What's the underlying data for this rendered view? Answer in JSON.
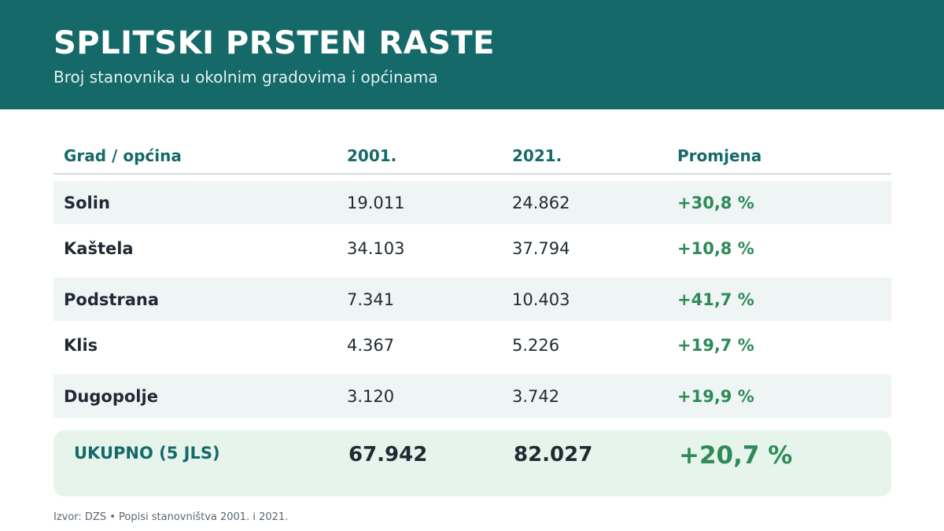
{
  "header": {
    "title": "SPLITSKI PRSTEN RASTE",
    "subtitle": "Broj stanovnika u okolnim gradovima i općinama"
  },
  "chart_data": {
    "type": "table",
    "title": "SPLITSKI PRSTEN RASTE",
    "subtitle": "Broj stanovnika u okolnim gradovima i općinama",
    "columns": [
      "Grad / općina",
      "2001.",
      "2021.",
      "Promjena"
    ],
    "rows": [
      {
        "name": "Solin",
        "y2001": "19.011",
        "y2021": "24.862",
        "change": "+30,8 %"
      },
      {
        "name": "Kaštela",
        "y2001": "34.103",
        "y2021": "37.794",
        "change": "+10,8 %"
      },
      {
        "name": "Podstrana",
        "y2001": "7.341",
        "y2021": "10.403",
        "change": "+41,7 %"
      },
      {
        "name": "Klis",
        "y2001": "4.367",
        "y2021": "5.226",
        "change": "+19,7 %"
      },
      {
        "name": "Dugopolje",
        "y2001": "3.120",
        "y2021": "3.742",
        "change": "+19,9 %"
      }
    ],
    "total": {
      "name": "UKUPNO (5 JLS)",
      "y2001": "67.942",
      "y2021": "82.027",
      "change": "+20,7 %"
    }
  },
  "source": "Izvor: DZS • Popisi stanovništva 2001. i 2021.",
  "colors": {
    "header_bg": "#156a69",
    "accent": "#156a69",
    "positive": "#2e8a57",
    "row_shade": "#eff5f5",
    "total_bg": "#e7f4ec"
  }
}
